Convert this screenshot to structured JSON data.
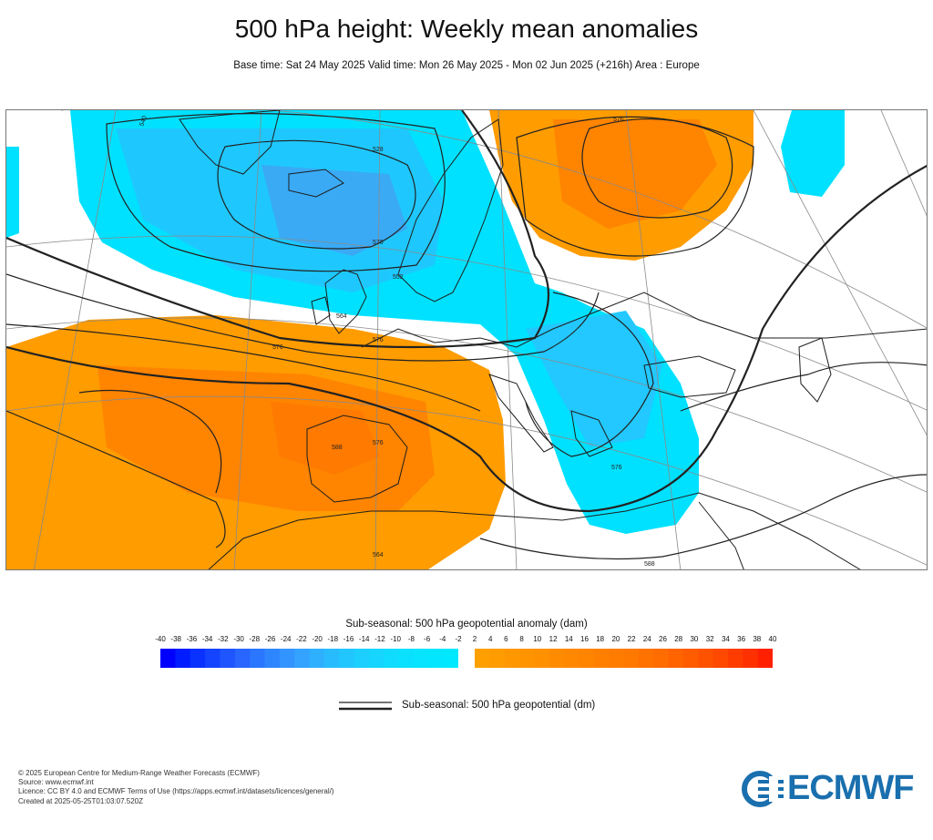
{
  "title": "500 hPa height: Weekly mean anomalies",
  "subtitle": "Base time: Sat 24 May 2025 Valid time: Mon 26 May 2025 - Mon 02 Jun 2025 (+216h) Area : Europe",
  "map": {
    "contour_labels": [
      "540",
      "528",
      "576",
      "576",
      "552",
      "564",
      "576",
      "588",
      "576",
      "576",
      "564",
      "576",
      "588"
    ],
    "colors": {
      "negative_anomaly": "#00e1ff",
      "negative_anomaly_deep": "#20a8f0",
      "positive_anomaly": "#ff9c00",
      "positive_anomaly_deep": "#ff7a00",
      "contour": "#222222",
      "coast": "#222222"
    }
  },
  "colorbar": {
    "title": "Sub-seasonal: 500 hPa geopotential anomaly (dam)",
    "ticks": [
      "-40",
      "-38",
      "-36",
      "-34",
      "-32",
      "-30",
      "-28",
      "-26",
      "-24",
      "-22",
      "-20",
      "-18",
      "-16",
      "-14",
      "-12",
      "-10",
      "-8",
      "-6",
      "-4",
      "-2",
      "2",
      "4",
      "6",
      "8",
      "10",
      "12",
      "14",
      "16",
      "18",
      "20",
      "22",
      "24",
      "26",
      "28",
      "30",
      "32",
      "34",
      "36",
      "38",
      "40"
    ],
    "negative_colors": [
      "#0000ff",
      "#001cff",
      "#0a32ff",
      "#1444ff",
      "#1e55ff",
      "#2866ff",
      "#2a76ff",
      "#2e86ff",
      "#3294ff",
      "#34a2ff",
      "#2eb0ff",
      "#28bcff",
      "#22c6ff",
      "#1ccfff",
      "#16d6ff",
      "#10dcff",
      "#0ae0ff",
      "#06e4ff",
      "#03e6ff",
      "#00e8ff"
    ],
    "positive_colors": [
      "#ffa000",
      "#ff9c00",
      "#ff9800",
      "#ff9400",
      "#ff9000",
      "#ff8c00",
      "#ff8800",
      "#ff8400",
      "#ff8000",
      "#ff7c00",
      "#ff7800",
      "#ff7200",
      "#ff6c00",
      "#ff6400",
      "#ff5c00",
      "#ff5200",
      "#ff4800",
      "#ff3c00",
      "#ff3000",
      "#ff2000"
    ]
  },
  "legend": {
    "label": "Sub-seasonal: 500 hPa geopotential (dm)"
  },
  "footer": {
    "line1": "© 2025 European Centre for Medium-Range Weather Forecasts (ECMWF)",
    "line2": "Source: www.ecmwf.int",
    "line3": "Licence: CC BY 4.0 and ECMWF Terms of Use (https://apps.ecmwf.int/datasets/licences/general/)",
    "line4": "Created at 2025-05-25T01:03:07.520Z"
  },
  "logo": {
    "text": "ECMWF",
    "color": "#1a6fae"
  }
}
